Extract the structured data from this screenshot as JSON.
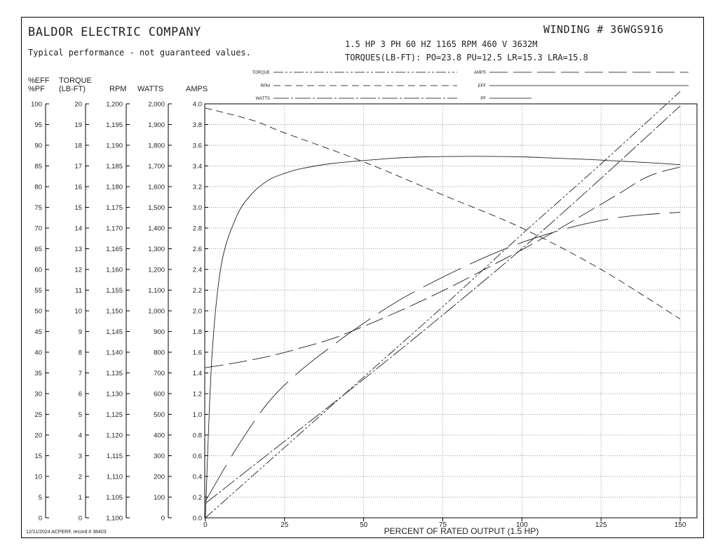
{
  "header": {
    "company": "BALDOR ELECTRIC COMPANY",
    "subtitle": "Typical performance - not guaranteed values.",
    "winding": "WINDING # 36WGS916",
    "specs": "1.5 HP  3 PH  60 HZ  1165 RPM  460 V  3632M",
    "torques": "TORQUES(LB-FT): PO=23.8  PU=12.5  LR=15.3  LRA=15.8"
  },
  "footer": "12/11/2024 ACPERF, record # 38403",
  "legend": [
    {
      "label": "TORQUE",
      "dash": "14 3 3 3 3 3"
    },
    {
      "label": "RPM",
      "dash": "10 6"
    },
    {
      "label": "WATTS",
      "dash": "22 3 3 3"
    },
    {
      "label": "AMPS",
      "dash": "26 8"
    },
    {
      "label": "EFF",
      "dash": ""
    },
    {
      "label": "PF",
      "dash": "60 14"
    }
  ],
  "chart_data": {
    "type": "line",
    "xlabel": "PERCENT OF RATED OUTPUT (1.5 HP)",
    "xlim": [
      0,
      150
    ],
    "xticks": [
      0,
      25,
      50,
      75,
      100,
      125,
      150
    ],
    "grid": true,
    "axes": [
      {
        "name": "eff_pf",
        "header": [
          "%EFF",
          "%PF"
        ],
        "min": 0,
        "max": 100,
        "step": 5,
        "fmt": "int"
      },
      {
        "name": "torque",
        "header": [
          "TORQUE",
          "(LB-FT)"
        ],
        "min": 0,
        "max": 20,
        "step": 1,
        "fmt": "int"
      },
      {
        "name": "rpm",
        "header": [
          "",
          "RPM"
        ],
        "min": 1100,
        "max": 1200,
        "step": 5,
        "fmt": "comma"
      },
      {
        "name": "watts",
        "header": [
          "",
          "WATTS"
        ],
        "min": 0,
        "max": 2000,
        "step": 100,
        "fmt": "comma"
      },
      {
        "name": "amps",
        "header": [
          "",
          "AMPS"
        ],
        "min": 0,
        "max": 4,
        "step": 0.2,
        "fmt": "dec1"
      }
    ],
    "series": [
      {
        "name": "EFF",
        "axis": "eff_pf",
        "dash": "",
        "x": [
          0,
          2,
          5,
          10,
          15,
          20,
          25,
          30,
          40,
          50,
          60,
          70,
          80,
          90,
          100,
          110,
          120,
          130,
          140,
          150
        ],
        "y": [
          0,
          38,
          61,
          73,
          78.5,
          81.6,
          83.2,
          84.3,
          85.6,
          86.3,
          86.9,
          87.2,
          87.3,
          87.3,
          87.2,
          86.9,
          86.6,
          86.2,
          85.8,
          85.3
        ]
      },
      {
        "name": "PF",
        "axis": "eff_pf",
        "dash": "60 14",
        "x": [
          0,
          10,
          20,
          30,
          40,
          50,
          60,
          70,
          80,
          90,
          100,
          110,
          120,
          130,
          140,
          150
        ],
        "y": [
          4,
          17,
          28,
          35.5,
          41.5,
          47,
          52,
          56.2,
          60,
          63.5,
          66.5,
          69,
          71,
          72.5,
          73.3,
          73.8
        ]
      },
      {
        "name": "TORQUE",
        "axis": "torque",
        "dash": "14 3 3 3 3 3",
        "x": [
          0,
          25,
          50,
          75,
          100,
          125,
          150
        ],
        "y": [
          0,
          3.4,
          6.8,
          10.2,
          13.7,
          17.1,
          20.6
        ]
      },
      {
        "name": "RPM",
        "axis": "rpm",
        "dash": "10 6",
        "x": [
          0,
          15,
          25,
          50,
          75,
          100,
          125,
          150
        ],
        "y": [
          1199,
          1196,
          1193,
          1186,
          1178,
          1170,
          1160,
          1148
        ]
      },
      {
        "name": "WATTS",
        "axis": "watts",
        "dash": "22 3 3 3",
        "x": [
          0,
          25,
          50,
          75,
          100,
          125,
          150
        ],
        "y": [
          70,
          370,
          670,
          980,
          1300,
          1640,
          1990
        ]
      },
      {
        "name": "AMPS",
        "axis": "amps",
        "dash": "26 8",
        "x": [
          0,
          10,
          20,
          30,
          40,
          50,
          60,
          70,
          80,
          90,
          100,
          110,
          120,
          130,
          140,
          150
        ],
        "y": [
          1.45,
          1.5,
          1.56,
          1.64,
          1.73,
          1.85,
          1.98,
          2.12,
          2.27,
          2.43,
          2.59,
          2.76,
          2.94,
          3.12,
          3.3,
          3.39
        ]
      }
    ]
  }
}
